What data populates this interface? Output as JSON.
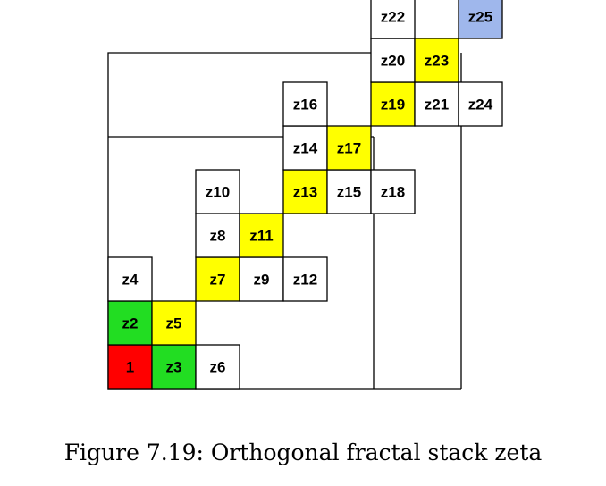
{
  "colors": {
    "white": "#ffffff",
    "yellow": "#ffff00",
    "green": "#22dd22",
    "red": "#ff0000",
    "blue": "#9fb7ec",
    "line": "#000000"
  },
  "cells": [
    {
      "label": "1",
      "col": 0,
      "row": 0,
      "color": "red"
    },
    {
      "label": "z2",
      "col": 0,
      "row": 1,
      "color": "green"
    },
    {
      "label": "z3",
      "col": 1,
      "row": 0,
      "color": "green"
    },
    {
      "label": "z4",
      "col": 0,
      "row": 2,
      "color": "white"
    },
    {
      "label": "z5",
      "col": 1,
      "row": 1,
      "color": "yellow"
    },
    {
      "label": "z6",
      "col": 2,
      "row": 0,
      "color": "white"
    },
    {
      "label": "z7",
      "col": 2,
      "row": 2,
      "color": "yellow"
    },
    {
      "label": "z8",
      "col": 2,
      "row": 3,
      "color": "white"
    },
    {
      "label": "z9",
      "col": 3,
      "row": 2,
      "color": "white"
    },
    {
      "label": "z10",
      "col": 2,
      "row": 4,
      "color": "white"
    },
    {
      "label": "z11",
      "col": 3,
      "row": 3,
      "color": "yellow"
    },
    {
      "label": "z12",
      "col": 4,
      "row": 2,
      "color": "white"
    },
    {
      "label": "z13",
      "col": 4,
      "row": 4,
      "color": "yellow"
    },
    {
      "label": "z14",
      "col": 4,
      "row": 5,
      "color": "white"
    },
    {
      "label": "z15",
      "col": 5,
      "row": 4,
      "color": "white"
    },
    {
      "label": "z16",
      "col": 4,
      "row": 6,
      "color": "white"
    },
    {
      "label": "z17",
      "col": 5,
      "row": 5,
      "color": "yellow"
    },
    {
      "label": "z18",
      "col": 6,
      "row": 4,
      "color": "white"
    },
    {
      "label": "z19",
      "col": 6,
      "row": 6,
      "color": "yellow"
    },
    {
      "label": "z20",
      "col": 6,
      "row": 7,
      "color": "white"
    },
    {
      "label": "z21",
      "col": 7,
      "row": 6,
      "color": "white"
    },
    {
      "label": "z22",
      "col": 6,
      "row": 8,
      "color": "white"
    },
    {
      "label": "z23",
      "col": 7,
      "row": 7,
      "color": "yellow"
    },
    {
      "label": "z24",
      "col": 8,
      "row": 6,
      "color": "white"
    },
    {
      "label": "z25",
      "col": 8,
      "row": 8,
      "color": "blue"
    }
  ],
  "caption": "Figure 7.19: Orthogonal fractal stack zeta"
}
